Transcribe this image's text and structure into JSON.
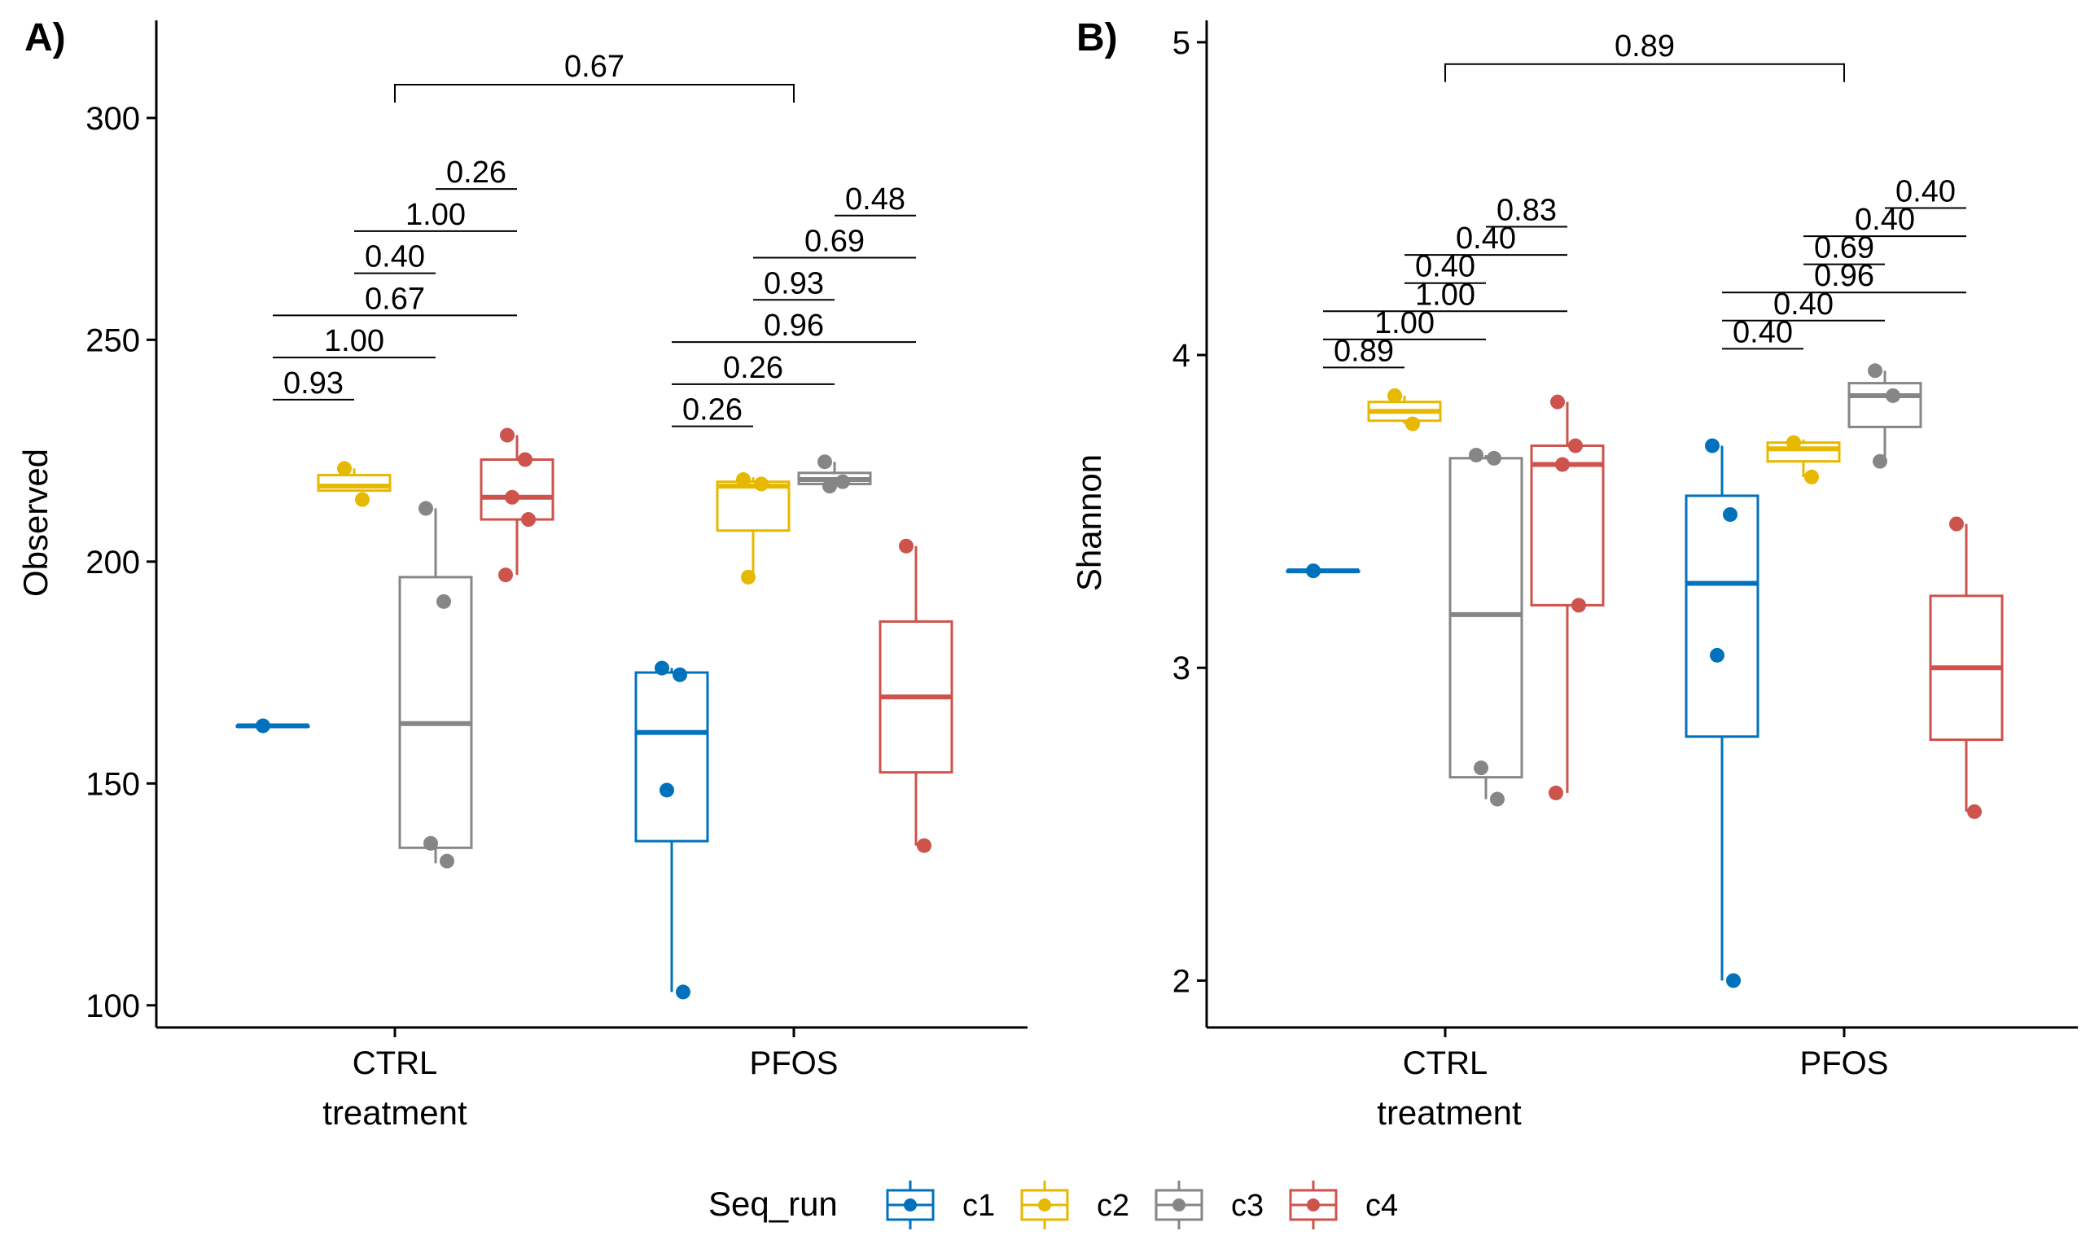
{
  "chart_data": [
    {
      "type": "box",
      "tag": "A)",
      "xlabel": "treatment",
      "ylabel": "Observed",
      "ylim": [
        95,
        322
      ],
      "yticks": [
        100,
        150,
        200,
        250,
        300
      ],
      "categories": [
        "CTRL",
        "PFOS"
      ],
      "overall_comparison": "0.67",
      "groups": [
        {
          "treatment": "CTRL",
          "run": "c1",
          "box": {
            "q1": 163,
            "median": 163,
            "q3": 163,
            "whisker_low": 163,
            "whisker_high": 163
          },
          "points": [
            163
          ]
        },
        {
          "treatment": "CTRL",
          "run": "c2",
          "box": {
            "q1": 216,
            "median": 217,
            "q3": 219.5,
            "whisker_low": 216,
            "whisker_high": 221
          },
          "points": [
            221,
            214
          ]
        },
        {
          "treatment": "CTRL",
          "run": "c3",
          "box": {
            "q1": 135.5,
            "median": 163.5,
            "q3": 196.5,
            "whisker_low": 132,
            "whisker_high": 212
          },
          "points": [
            212,
            191,
            136.5,
            132.5
          ]
        },
        {
          "treatment": "CTRL",
          "run": "c4",
          "box": {
            "q1": 209.5,
            "median": 214.5,
            "q3": 223,
            "whisker_low": 197,
            "whisker_high": 228.5
          },
          "points": [
            228.5,
            223,
            214.5,
            209.5,
            197
          ]
        },
        {
          "treatment": "PFOS",
          "run": "c1",
          "box": {
            "q1": 137,
            "median": 161.5,
            "q3": 175,
            "whisker_low": 103,
            "whisker_high": 176
          },
          "points": [
            176,
            174.5,
            148.5,
            103
          ]
        },
        {
          "treatment": "PFOS",
          "run": "c2",
          "box": {
            "q1": 207,
            "median": 217,
            "q3": 218,
            "whisker_low": 196.5,
            "whisker_high": 219
          },
          "points": [
            218.5,
            217.5,
            196.5
          ]
        },
        {
          "treatment": "PFOS",
          "run": "c3",
          "box": {
            "q1": 217.5,
            "median": 218.5,
            "q3": 220,
            "whisker_low": 217,
            "whisker_high": 222.5
          },
          "points": [
            222.5,
            218,
            217
          ]
        },
        {
          "treatment": "PFOS",
          "run": "c4",
          "box": {
            "q1": 152.5,
            "median": 169.5,
            "q3": 186.5,
            "whisker_low": 136,
            "whisker_high": 203.5
          },
          "points": [
            203.5,
            136
          ]
        }
      ],
      "comparisons": [
        {
          "treatment": "CTRL",
          "from": 1,
          "to": 2,
          "label": "0.93",
          "y": 236.5
        },
        {
          "treatment": "CTRL",
          "from": 1,
          "to": 3,
          "label": "1.00",
          "y": 246
        },
        {
          "treatment": "CTRL",
          "from": 1,
          "to": 4,
          "label": "0.67",
          "y": 255.5
        },
        {
          "treatment": "CTRL",
          "from": 2,
          "to": 3,
          "label": "0.40",
          "y": 265
        },
        {
          "treatment": "CTRL",
          "from": 2,
          "to": 4,
          "label": "1.00",
          "y": 274.5
        },
        {
          "treatment": "CTRL",
          "from": 3,
          "to": 4,
          "label": "0.26",
          "y": 284
        },
        {
          "treatment": "PFOS",
          "from": 1,
          "to": 2,
          "label": "0.26",
          "y": 230.5
        },
        {
          "treatment": "PFOS",
          "from": 1,
          "to": 3,
          "label": "0.26",
          "y": 240
        },
        {
          "treatment": "PFOS",
          "from": 1,
          "to": 4,
          "label": "0.96",
          "y": 249.5
        },
        {
          "treatment": "PFOS",
          "from": 2,
          "to": 3,
          "label": "0.93",
          "y": 259
        },
        {
          "treatment": "PFOS",
          "from": 2,
          "to": 4,
          "label": "0.69",
          "y": 268.5
        },
        {
          "treatment": "PFOS",
          "from": 3,
          "to": 4,
          "label": "0.48",
          "y": 278
        }
      ],
      "overall_y": 307.5
    },
    {
      "type": "box",
      "tag": "B)",
      "xlabel": "treatment",
      "ylabel": "Shannon",
      "ylim": [
        1.85,
        5.07
      ],
      "yticks": [
        2,
        3,
        4,
        5
      ],
      "categories": [
        "CTRL",
        "PFOS"
      ],
      "overall_comparison": "0.89",
      "groups": [
        {
          "treatment": "CTRL",
          "run": "c1",
          "box": {
            "q1": 3.31,
            "median": 3.31,
            "q3": 3.31,
            "whisker_low": 3.31,
            "whisker_high": 3.31
          },
          "points": [
            3.31
          ]
        },
        {
          "treatment": "CTRL",
          "run": "c2",
          "box": {
            "q1": 3.79,
            "median": 3.82,
            "q3": 3.85,
            "whisker_low": 3.78,
            "whisker_high": 3.87
          },
          "points": [
            3.87,
            3.78
          ]
        },
        {
          "treatment": "CTRL",
          "run": "c3",
          "box": {
            "q1": 2.65,
            "median": 3.17,
            "q3": 3.67,
            "whisker_low": 2.58,
            "whisker_high": 3.68
          },
          "points": [
            3.68,
            3.67,
            2.68,
            2.58
          ]
        },
        {
          "treatment": "CTRL",
          "run": "c4",
          "box": {
            "q1": 3.2,
            "median": 3.65,
            "q3": 3.71,
            "whisker_low": 2.6,
            "whisker_high": 3.85
          },
          "points": [
            3.85,
            3.71,
            3.65,
            3.2,
            2.6
          ]
        },
        {
          "treatment": "PFOS",
          "run": "c1",
          "box": {
            "q1": 2.78,
            "median": 3.27,
            "q3": 3.55,
            "whisker_low": 2.0,
            "whisker_high": 3.71
          },
          "points": [
            3.71,
            3.49,
            3.04,
            2.0
          ]
        },
        {
          "treatment": "PFOS",
          "run": "c2",
          "box": {
            "q1": 3.66,
            "median": 3.7,
            "q3": 3.72,
            "whisker_low": 3.61,
            "whisker_high": 3.73
          },
          "points": [
            3.72,
            3.61
          ]
        },
        {
          "treatment": "PFOS",
          "run": "c3",
          "box": {
            "q1": 3.77,
            "median": 3.87,
            "q3": 3.91,
            "whisker_low": 3.66,
            "whisker_high": 3.95
          },
          "points": [
            3.95,
            3.87,
            3.66
          ]
        },
        {
          "treatment": "PFOS",
          "run": "c4",
          "box": {
            "q1": 2.77,
            "median": 3.0,
            "q3": 3.23,
            "whisker_low": 2.54,
            "whisker_high": 3.46
          },
          "points": [
            3.46,
            2.54
          ]
        }
      ],
      "comparisons": [
        {
          "treatment": "CTRL",
          "from": 1,
          "to": 2,
          "label": "0.89",
          "y": 3.96
        },
        {
          "treatment": "CTRL",
          "from": 1,
          "to": 3,
          "label": "1.00",
          "y": 4.05
        },
        {
          "treatment": "CTRL",
          "from": 1,
          "to": 4,
          "label": "1.00",
          "y": 4.14
        },
        {
          "treatment": "CTRL",
          "from": 2,
          "to": 3,
          "label": "0.40",
          "y": 4.23
        },
        {
          "treatment": "CTRL",
          "from": 2,
          "to": 4,
          "label": "0.40",
          "y": 4.32
        },
        {
          "treatment": "CTRL",
          "from": 3,
          "to": 4,
          "label": "0.83",
          "y": 4.41
        },
        {
          "treatment": "PFOS",
          "from": 1,
          "to": 2,
          "label": "0.40",
          "y": 4.02
        },
        {
          "treatment": "PFOS",
          "from": 1,
          "to": 3,
          "label": "0.40",
          "y": 4.11
        },
        {
          "treatment": "PFOS",
          "from": 1,
          "to": 4,
          "label": "0.96",
          "y": 4.2
        },
        {
          "treatment": "PFOS",
          "from": 2,
          "to": 3,
          "label": "0.69",
          "y": 4.29
        },
        {
          "treatment": "PFOS",
          "from": 2,
          "to": 4,
          "label": "0.40",
          "y": 4.38
        },
        {
          "treatment": "PFOS",
          "from": 3,
          "to": 4,
          "label": "0.40",
          "y": 4.47
        }
      ],
      "overall_y": 4.93
    }
  ],
  "legend": {
    "title": "Seq_run",
    "placement": "bottom",
    "items": [
      {
        "label": "c1",
        "color": "#0072bd"
      },
      {
        "label": "c2",
        "color": "#e7b800"
      },
      {
        "label": "c3",
        "color": "#868686"
      },
      {
        "label": "c4",
        "color": "#cd534c"
      }
    ]
  }
}
